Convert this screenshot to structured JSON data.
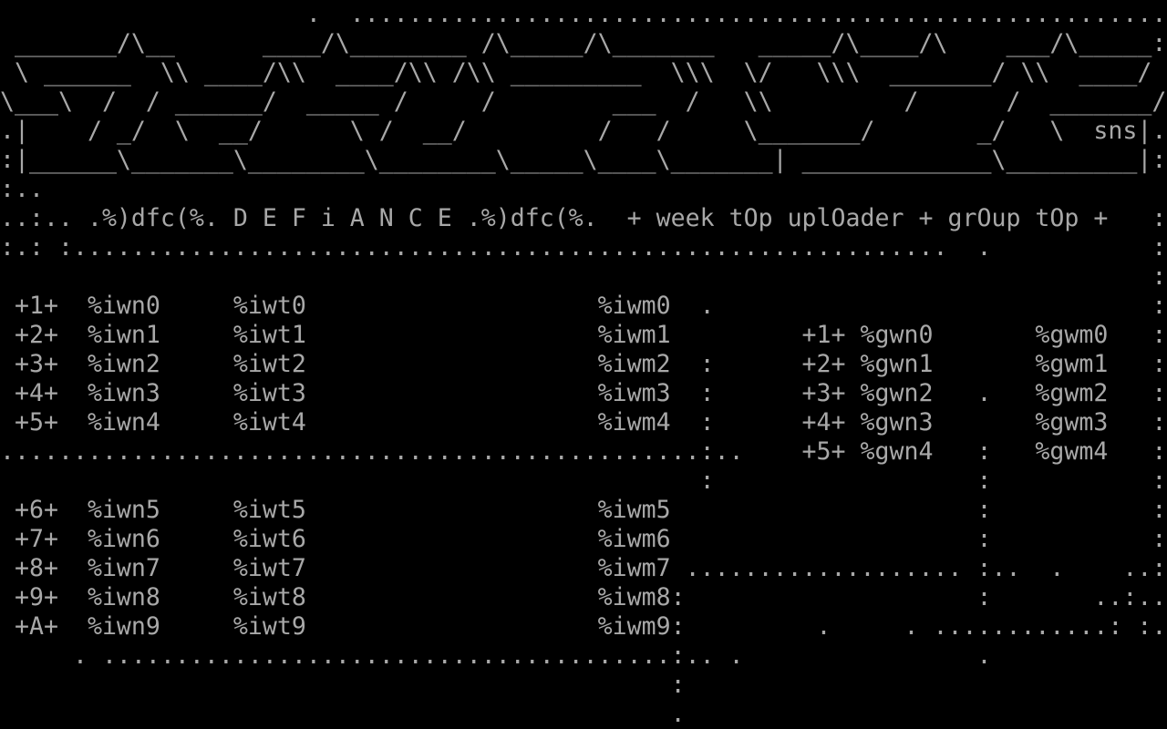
{
  "meta": {
    "kind": "ascii-nfo-screen",
    "group_name": "DEFiANCE",
    "group_tag": "dfc",
    "header_left_decor": ".%)dfc(%.",
    "header_title": "D E F i A N C E",
    "header_right_decor": ".%)dfc(%.",
    "section_title": "+ week tOp uplOader + grOup tOp +",
    "artist_signature": "sns",
    "colors": {
      "foreground": "#a8a8a8",
      "background": "#000000"
    },
    "week_top_uploader_rows": [
      {
        "rank": "+1+",
        "name": "%iwn0",
        "tag": "%iwt0",
        "megs": "%iwm0"
      },
      {
        "rank": "+2+",
        "name": "%iwn1",
        "tag": "%iwt1",
        "megs": "%iwm1"
      },
      {
        "rank": "+3+",
        "name": "%iwn2",
        "tag": "%iwt2",
        "megs": "%iwm2"
      },
      {
        "rank": "+4+",
        "name": "%iwn3",
        "tag": "%iwt3",
        "megs": "%iwm3"
      },
      {
        "rank": "+5+",
        "name": "%iwn4",
        "tag": "%iwt4",
        "megs": "%iwm4"
      },
      {
        "rank": "+6+",
        "name": "%iwn5",
        "tag": "%iwt5",
        "megs": "%iwm5"
      },
      {
        "rank": "+7+",
        "name": "%iwn6",
        "tag": "%iwt6",
        "megs": "%iwm6"
      },
      {
        "rank": "+8+",
        "name": "%iwn7",
        "tag": "%iwt7",
        "megs": "%iwm7"
      },
      {
        "rank": "+9+",
        "name": "%iwn8",
        "tag": "%iwt8",
        "megs": "%iwm8"
      },
      {
        "rank": "+A+",
        "name": "%iwn9",
        "tag": "%iwt9",
        "megs": "%iwm9"
      }
    ],
    "group_top_rows": [
      {
        "rank": "+1+",
        "name": "%gwn0",
        "megs": "%gwm0"
      },
      {
        "rank": "+2+",
        "name": "%gwn1",
        "megs": "%gwm1"
      },
      {
        "rank": "+3+",
        "name": "%gwn2",
        "megs": "%gwm2"
      },
      {
        "rank": "+4+",
        "name": "%gwn3",
        "megs": "%gwm3"
      },
      {
        "rank": "+5+",
        "name": "%gwn4",
        "megs": "%gwm4"
      }
    ]
  },
  "screen": {
    "cols": 80,
    "rows_count": 25,
    "rows": [
      [
        [
          21,
          "."
        ],
        [
          24,
          "........................................................"
        ]
      ],
      [
        [
          1,
          "_______"
        ],
        [
          8,
          "/\\"
        ],
        [
          10,
          "__"
        ],
        [
          18,
          "____"
        ],
        [
          22,
          "/\\"
        ],
        [
          24,
          "________"
        ],
        [
          33,
          "/\\"
        ],
        [
          35,
          "_____"
        ],
        [
          40,
          "/\\"
        ],
        [
          42,
          "_______"
        ],
        [
          52,
          "_____"
        ],
        [
          57,
          "/\\"
        ],
        [
          59,
          "____"
        ],
        [
          63,
          "/\\"
        ],
        [
          69,
          "___"
        ],
        [
          72,
          "/\\"
        ],
        [
          74,
          "_____"
        ],
        [
          79,
          ":"
        ]
      ],
      [
        [
          1,
          "\\"
        ],
        [
          3,
          "______"
        ],
        [
          11,
          "\\\\"
        ],
        [
          14,
          "____"
        ],
        [
          18,
          "/"
        ],
        [
          19,
          "\\\\"
        ],
        [
          23,
          "____"
        ],
        [
          27,
          "/"
        ],
        [
          28,
          "\\\\"
        ],
        [
          31,
          "/"
        ],
        [
          32,
          "\\\\"
        ],
        [
          35,
          "_________"
        ],
        [
          46,
          "\\\\\\"
        ],
        [
          51,
          "\\/"
        ],
        [
          56,
          "\\\\\\"
        ],
        [
          61,
          "_______"
        ],
        [
          68,
          "/"
        ],
        [
          70,
          "\\\\"
        ],
        [
          74,
          "____"
        ],
        [
          78,
          "/"
        ]
      ],
      [
        [
          0,
          "\\"
        ],
        [
          1,
          "___"
        ],
        [
          4,
          "\\"
        ],
        [
          7,
          "/"
        ],
        [
          10,
          "/"
        ],
        [
          12,
          "______"
        ],
        [
          18,
          "/"
        ],
        [
          21,
          "_____"
        ],
        [
          27,
          "/"
        ],
        [
          33,
          "/"
        ],
        [
          42,
          "___"
        ],
        [
          47,
          "/"
        ],
        [
          51,
          "\\\\"
        ],
        [
          62,
          "/"
        ],
        [
          69,
          "/"
        ],
        [
          72,
          "_______"
        ],
        [
          79,
          "/"
        ]
      ],
      [
        [
          0,
          "."
        ],
        [
          1,
          "|"
        ],
        [
          6,
          "/"
        ],
        [
          8,
          "_/"
        ],
        [
          12,
          "\\"
        ],
        [
          15,
          "__/"
        ],
        [
          24,
          "\\"
        ],
        [
          26,
          "/"
        ],
        [
          29,
          "__/"
        ],
        [
          41,
          "/"
        ],
        [
          45,
          "/"
        ],
        [
          51,
          "\\"
        ],
        [
          52,
          "_______"
        ],
        [
          59,
          "/"
        ],
        [
          67,
          "_/"
        ],
        [
          72,
          "\\"
        ],
        [
          75,
          "sns"
        ],
        [
          78,
          "|"
        ],
        [
          79,
          "."
        ]
      ],
      [
        [
          0,
          ":"
        ],
        [
          1,
          "|"
        ],
        [
          2,
          "______"
        ],
        [
          8,
          "\\"
        ],
        [
          9,
          "_______"
        ],
        [
          16,
          "\\"
        ],
        [
          17,
          "________"
        ],
        [
          25,
          "\\"
        ],
        [
          26,
          "________"
        ],
        [
          34,
          "\\"
        ],
        [
          35,
          "_____"
        ],
        [
          40,
          "\\"
        ],
        [
          41,
          "____"
        ],
        [
          45,
          "\\"
        ],
        [
          46,
          "_______"
        ],
        [
          53,
          "|"
        ],
        [
          55,
          "_____________"
        ],
        [
          68,
          "\\"
        ],
        [
          69,
          "_________"
        ],
        [
          78,
          "|"
        ],
        [
          79,
          ":"
        ]
      ],
      [
        [
          0,
          ":.."
        ]
      ],
      [
        [
          0,
          "..:.. .%)dfc(%. D E F i A N C E .%)dfc(%."
        ],
        [
          43,
          "+ week tOp uplOader + grOup tOp +"
        ],
        [
          79,
          ":"
        ]
      ],
      [
        [
          0,
          ":.: :"
        ],
        [
          5,
          "............................................................"
        ],
        [
          67,
          "."
        ],
        [
          79,
          ":"
        ]
      ],
      [
        [
          79,
          ":"
        ]
      ],
      [
        [
          1,
          "+1+"
        ],
        [
          6,
          "%iwn0"
        ],
        [
          16,
          "%iwt0"
        ],
        [
          41,
          "%iwm0"
        ],
        [
          48,
          "."
        ],
        [
          79,
          ":"
        ]
      ],
      [
        [
          1,
          "+2+"
        ],
        [
          6,
          "%iwn1"
        ],
        [
          16,
          "%iwt1"
        ],
        [
          41,
          "%iwm1"
        ],
        [
          55,
          "+1+"
        ],
        [
          59,
          "%gwn0"
        ],
        [
          71,
          "%gwm0"
        ],
        [
          79,
          ":"
        ]
      ],
      [
        [
          1,
          "+3+"
        ],
        [
          6,
          "%iwn2"
        ],
        [
          16,
          "%iwt2"
        ],
        [
          41,
          "%iwm2"
        ],
        [
          48,
          ":"
        ],
        [
          55,
          "+2+"
        ],
        [
          59,
          "%gwn1"
        ],
        [
          71,
          "%gwm1"
        ],
        [
          79,
          ":"
        ]
      ],
      [
        [
          1,
          "+4+"
        ],
        [
          6,
          "%iwn3"
        ],
        [
          16,
          "%iwt3"
        ],
        [
          41,
          "%iwm3"
        ],
        [
          48,
          ":"
        ],
        [
          55,
          "+3+"
        ],
        [
          59,
          "%gwn2"
        ],
        [
          67,
          "."
        ],
        [
          71,
          "%gwm2"
        ],
        [
          79,
          ":"
        ]
      ],
      [
        [
          1,
          "+5+"
        ],
        [
          6,
          "%iwn4"
        ],
        [
          16,
          "%iwt4"
        ],
        [
          41,
          "%iwm4"
        ],
        [
          48,
          ":"
        ],
        [
          55,
          "+4+"
        ],
        [
          59,
          "%gwn3"
        ],
        [
          71,
          "%gwm3"
        ],
        [
          79,
          ":"
        ]
      ],
      [
        [
          0,
          "................................................"
        ],
        [
          48,
          ":"
        ],
        [
          49,
          ".."
        ],
        [
          55,
          "+5+"
        ],
        [
          59,
          "%gwn4"
        ],
        [
          67,
          ":"
        ],
        [
          71,
          "%gwm4"
        ],
        [
          79,
          ":"
        ]
      ],
      [
        [
          48,
          ":"
        ],
        [
          67,
          ":"
        ],
        [
          79,
          ":"
        ]
      ],
      [
        [
          1,
          "+6+"
        ],
        [
          6,
          "%iwn5"
        ],
        [
          16,
          "%iwt5"
        ],
        [
          41,
          "%iwm5"
        ],
        [
          67,
          ":"
        ],
        [
          79,
          ":"
        ]
      ],
      [
        [
          1,
          "+7+"
        ],
        [
          6,
          "%iwn6"
        ],
        [
          16,
          "%iwt6"
        ],
        [
          41,
          "%iwm6"
        ],
        [
          67,
          ":"
        ],
        [
          79,
          ":"
        ]
      ],
      [
        [
          1,
          "+8+"
        ],
        [
          6,
          "%iwn7"
        ],
        [
          16,
          "%iwt7"
        ],
        [
          41,
          "%iwm7"
        ],
        [
          47,
          "..................."
        ],
        [
          67,
          ":.."
        ],
        [
          72,
          "."
        ],
        [
          77,
          "..:"
        ]
      ],
      [
        [
          1,
          "+9+"
        ],
        [
          6,
          "%iwn8"
        ],
        [
          16,
          "%iwt8"
        ],
        [
          41,
          "%iwm8"
        ],
        [
          46,
          ":"
        ],
        [
          67,
          ":"
        ],
        [
          75,
          "..:.."
        ]
      ],
      [
        [
          1,
          "+A+"
        ],
        [
          6,
          "%iwn9"
        ],
        [
          16,
          "%iwt9"
        ],
        [
          41,
          "%iwm9"
        ],
        [
          46,
          ":"
        ],
        [
          56,
          "."
        ],
        [
          62,
          "."
        ],
        [
          64,
          "............"
        ],
        [
          76,
          ":"
        ],
        [
          78,
          ":."
        ]
      ],
      [
        [
          5,
          "."
        ],
        [
          7,
          "......................................."
        ],
        [
          46,
          ":.."
        ],
        [
          50,
          "."
        ],
        [
          67,
          "."
        ]
      ],
      [
        [
          46,
          ":"
        ]
      ],
      [
        [
          46,
          "."
        ]
      ]
    ]
  }
}
